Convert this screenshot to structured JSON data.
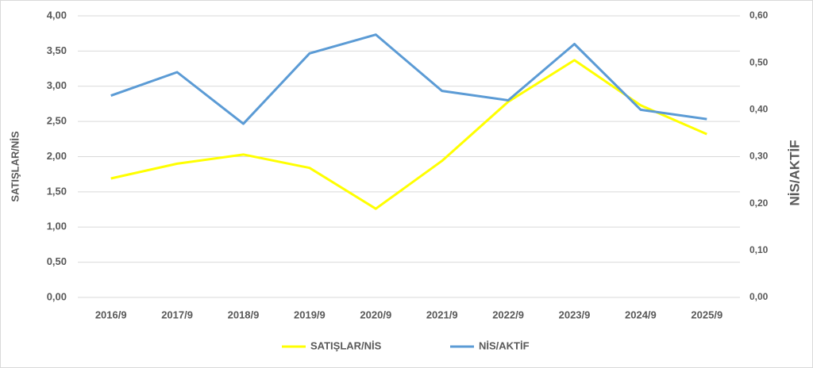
{
  "chart_data": {
    "type": "line",
    "y_label": "SATIŞLAR/NİS",
    "y2_label": "NİS/AKTİF",
    "categories": [
      "2016/9",
      "2017/9",
      "2018/9",
      "2019/9",
      "2020/9",
      "2021/9",
      "2022/9",
      "2023/9",
      "2024/9",
      "2025/9"
    ],
    "series": [
      {
        "name": "SATIŞLAR/NİS",
        "color": "#ffff00",
        "values": [
          1.69,
          1.9,
          2.03,
          1.84,
          1.26,
          1.94,
          2.78,
          3.37,
          2.73,
          2.32
        ]
      },
      {
        "name": "NİS/AKTİF",
        "color": "#5b9bd5",
        "axis": "y2",
        "values": [
          0.43,
          0.48,
          0.37,
          0.52,
          0.56,
          0.44,
          0.42,
          0.54,
          0.4,
          0.38
        ]
      }
    ],
    "ylim": [
      0,
      4
    ],
    "yticks": [
      {
        "value": 0,
        "label": "0,00"
      },
      {
        "value": 0.5,
        "label": "0,50"
      },
      {
        "value": 1,
        "label": "1,00"
      },
      {
        "value": 1.5,
        "label": "1,50"
      },
      {
        "value": 2,
        "label": "2,00"
      },
      {
        "value": 2.5,
        "label": "2,50"
      },
      {
        "value": 3,
        "label": "3,00"
      },
      {
        "value": 3.5,
        "label": "3,50"
      },
      {
        "value": 4,
        "label": "4,00"
      }
    ],
    "y2lim": [
      0,
      0.6
    ],
    "y2ticks": [
      {
        "value": 0,
        "label": "0,00"
      },
      {
        "value": 0.1,
        "label": "0,10"
      },
      {
        "value": 0.2,
        "label": "0,20"
      },
      {
        "value": 0.3,
        "label": "0,30"
      },
      {
        "value": 0.4,
        "label": "0,40"
      },
      {
        "value": 0.5,
        "label": "0,50"
      },
      {
        "value": 0.6,
        "label": "0,60"
      }
    ],
    "grid": true,
    "legend": "bottom"
  }
}
